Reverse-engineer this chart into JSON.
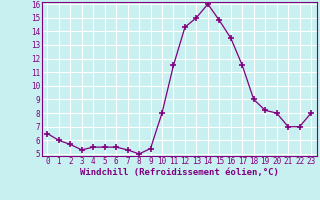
{
  "x": [
    0,
    1,
    2,
    3,
    4,
    5,
    6,
    7,
    8,
    9,
    10,
    11,
    12,
    13,
    14,
    15,
    16,
    17,
    18,
    19,
    20,
    21,
    22,
    23
  ],
  "y": [
    6.5,
    6.0,
    5.7,
    5.3,
    5.5,
    5.5,
    5.5,
    5.3,
    5.0,
    5.4,
    8.0,
    11.5,
    14.3,
    15.0,
    16.0,
    14.8,
    13.5,
    11.5,
    9.0,
    8.2,
    8.0,
    7.0,
    7.0,
    8.0
  ],
  "line_color": "#800080",
  "marker": "+",
  "marker_size": 4,
  "background_color": "#c8f0f0",
  "grid_color": "#ffffff",
  "xlabel": "Windchill (Refroidissement éolien,°C)",
  "xlabel_fontsize": 6.5,
  "tick_fontsize": 5.5,
  "ylim": [
    5,
    16
  ],
  "yticks": [
    5,
    6,
    7,
    8,
    9,
    10,
    11,
    12,
    13,
    14,
    15,
    16
  ],
  "xticks": [
    0,
    1,
    2,
    3,
    4,
    5,
    6,
    7,
    8,
    9,
    10,
    11,
    12,
    13,
    14,
    15,
    16,
    17,
    18,
    19,
    20,
    21,
    22,
    23
  ],
  "spine_color": "#800080"
}
